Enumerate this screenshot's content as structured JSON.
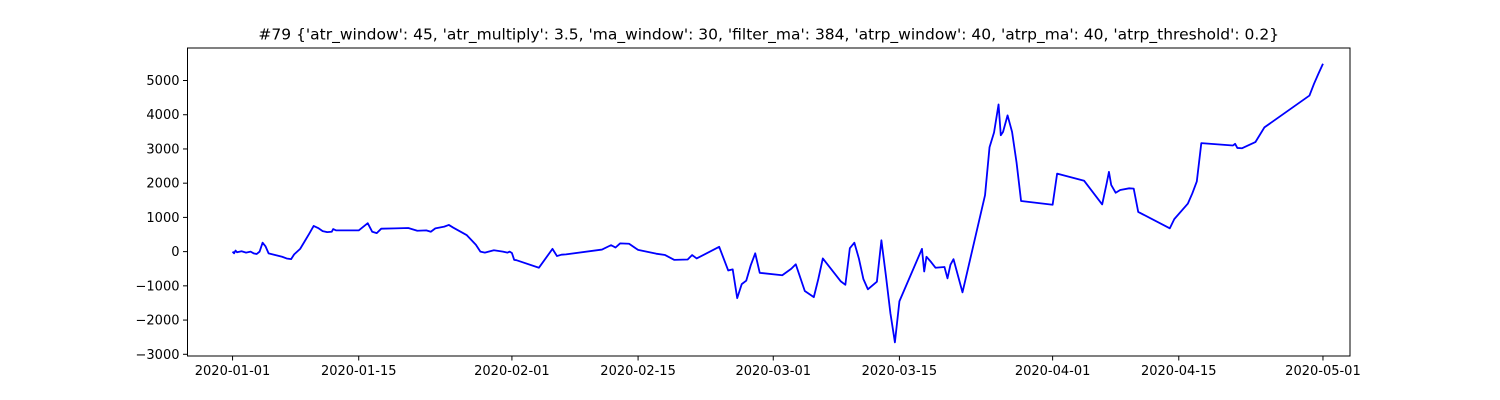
{
  "chart_data": {
    "type": "line",
    "title": "#79 {'atr_window': 45, 'atr_multiply': 3.5, 'ma_window': 30, 'filter_ma': 384, 'atrp_window': 40, 'atrp_ma': 40, 'atrp_threshold': 0.2}",
    "xlabel": "",
    "ylabel": "",
    "x_type": "date",
    "xlim": [
      "2019-12-27",
      "2020-05-04"
    ],
    "ylim": [
      -3050,
      5950
    ],
    "x_ticks": [
      "2020-01-01",
      "2020-01-15",
      "2020-02-01",
      "2020-02-15",
      "2020-03-01",
      "2020-03-15",
      "2020-04-01",
      "2020-04-15",
      "2020-05-01"
    ],
    "y_ticks": [
      -3000,
      -2000,
      -1000,
      0,
      1000,
      2000,
      3000,
      4000,
      5000
    ],
    "grid": false,
    "legend": "none",
    "series": [
      {
        "color": "#0000ff",
        "points": [
          [
            "2020-01-01T00:00",
            0
          ],
          [
            "2020-01-01T04:00",
            -50
          ],
          [
            "2020-01-01T08:00",
            30
          ],
          [
            "2020-01-01T12:00",
            -20
          ],
          [
            "2020-01-02T00:00",
            10
          ],
          [
            "2020-01-02T12:00",
            -30
          ],
          [
            "2020-01-03T00:00",
            0
          ],
          [
            "2020-01-03T08:00",
            -50
          ],
          [
            "2020-01-03T16:00",
            -70
          ],
          [
            "2020-01-04T00:00",
            0
          ],
          [
            "2020-01-04T08:00",
            260
          ],
          [
            "2020-01-04T16:00",
            150
          ],
          [
            "2020-01-05T00:00",
            -50
          ],
          [
            "2020-01-06T12:00",
            -150
          ],
          [
            "2020-01-07T00:00",
            -200
          ],
          [
            "2020-01-07T12:00",
            -220
          ],
          [
            "2020-01-07T20:00",
            -80
          ],
          [
            "2020-01-08T12:00",
            80
          ],
          [
            "2020-01-09T00:00",
            300
          ],
          [
            "2020-01-09T12:00",
            520
          ],
          [
            "2020-01-10T00:00",
            750
          ],
          [
            "2020-01-10T12:00",
            690
          ],
          [
            "2020-01-11T00:00",
            600
          ],
          [
            "2020-01-11T12:00",
            570
          ],
          [
            "2020-01-12T00:00",
            580
          ],
          [
            "2020-01-12T04:00",
            660
          ],
          [
            "2020-01-12T12:00",
            620
          ],
          [
            "2020-01-14T00:00",
            620
          ],
          [
            "2020-01-15T00:00",
            620
          ],
          [
            "2020-01-16T00:00",
            830
          ],
          [
            "2020-01-16T12:00",
            580
          ],
          [
            "2020-01-17T00:00",
            540
          ],
          [
            "2020-01-17T12:00",
            670
          ],
          [
            "2020-01-19T00:00",
            680
          ],
          [
            "2020-01-20T12:00",
            690
          ],
          [
            "2020-01-21T00:00",
            650
          ],
          [
            "2020-01-21T12:00",
            610
          ],
          [
            "2020-01-22T12:00",
            620
          ],
          [
            "2020-01-23T00:00",
            580
          ],
          [
            "2020-01-23T12:00",
            680
          ],
          [
            "2020-01-24T12:00",
            730
          ],
          [
            "2020-01-25T00:00",
            780
          ],
          [
            "2020-01-25T12:00",
            700
          ],
          [
            "2020-01-27T00:00",
            480
          ],
          [
            "2020-01-28T00:00",
            200
          ],
          [
            "2020-01-28T12:00",
            0
          ],
          [
            "2020-01-29T00:00",
            -30
          ],
          [
            "2020-01-30T00:00",
            40
          ],
          [
            "2020-01-31T00:00",
            0
          ],
          [
            "2020-01-31T12:00",
            -30
          ],
          [
            "2020-01-31T18:00",
            0
          ],
          [
            "2020-02-01T00:00",
            -40
          ],
          [
            "2020-02-01T06:00",
            -240
          ],
          [
            "2020-02-01T12:00",
            -250
          ],
          [
            "2020-02-04T00:00",
            -470
          ],
          [
            "2020-02-05T12:00",
            80
          ],
          [
            "2020-02-06T00:00",
            -130
          ],
          [
            "2020-02-06T12:00",
            -90
          ],
          [
            "2020-02-07T00:00",
            -80
          ],
          [
            "2020-02-11T00:00",
            60
          ],
          [
            "2020-02-12T00:00",
            190
          ],
          [
            "2020-02-12T12:00",
            120
          ],
          [
            "2020-02-13T00:00",
            240
          ],
          [
            "2020-02-14T00:00",
            230
          ],
          [
            "2020-02-15T00:00",
            50
          ],
          [
            "2020-02-17T00:00",
            -60
          ],
          [
            "2020-02-18T00:00",
            -100
          ],
          [
            "2020-02-19T00:00",
            -240
          ],
          [
            "2020-02-20T12:00",
            -230
          ],
          [
            "2020-02-21T00:00",
            -100
          ],
          [
            "2020-02-21T12:00",
            -200
          ],
          [
            "2020-02-24T00:00",
            140
          ],
          [
            "2020-02-25T00:00",
            -550
          ],
          [
            "2020-02-25T12:00",
            -520
          ],
          [
            "2020-02-26T00:00",
            -1360
          ],
          [
            "2020-02-26T12:00",
            -950
          ],
          [
            "2020-02-27T00:00",
            -850
          ],
          [
            "2020-02-27T12:00",
            -400
          ],
          [
            "2020-02-28T00:00",
            -50
          ],
          [
            "2020-02-28T12:00",
            -620
          ],
          [
            "2020-03-02T00:00",
            -690
          ],
          [
            "2020-03-03T00:00",
            -500
          ],
          [
            "2020-03-03T12:00",
            -370
          ],
          [
            "2020-03-04T12:00",
            -1150
          ],
          [
            "2020-03-05T12:00",
            -1330
          ],
          [
            "2020-03-06T00:00",
            -800
          ],
          [
            "2020-03-06T12:00",
            -200
          ],
          [
            "2020-03-08T12:00",
            -870
          ],
          [
            "2020-03-09T00:00",
            -970
          ],
          [
            "2020-03-09T12:00",
            100
          ],
          [
            "2020-03-10T00:00",
            260
          ],
          [
            "2020-03-10T12:00",
            -200
          ],
          [
            "2020-03-11T00:00",
            -800
          ],
          [
            "2020-03-11T12:00",
            -1100
          ],
          [
            "2020-03-12T12:00",
            -880
          ],
          [
            "2020-03-13T00:00",
            330
          ],
          [
            "2020-03-13T12:00",
            -700
          ],
          [
            "2020-03-14T00:00",
            -1800
          ],
          [
            "2020-03-14T12:00",
            -2650
          ],
          [
            "2020-03-15T00:00",
            -1450
          ],
          [
            "2020-03-17T12:00",
            80
          ],
          [
            "2020-03-17T18:00",
            -580
          ],
          [
            "2020-03-18T00:00",
            -150
          ],
          [
            "2020-03-18T12:00",
            -300
          ],
          [
            "2020-03-19T00:00",
            -470
          ],
          [
            "2020-03-20T00:00",
            -450
          ],
          [
            "2020-03-20T08:00",
            -780
          ],
          [
            "2020-03-20T16:00",
            -380
          ],
          [
            "2020-03-21T00:00",
            -220
          ],
          [
            "2020-03-22T00:00",
            -1190
          ],
          [
            "2020-03-24T12:00",
            1650
          ],
          [
            "2020-03-25T00:00",
            3050
          ],
          [
            "2020-03-25T12:00",
            3480
          ],
          [
            "2020-03-26T00:00",
            4300
          ],
          [
            "2020-03-26T06:00",
            3400
          ],
          [
            "2020-03-26T12:00",
            3500
          ],
          [
            "2020-03-27T00:00",
            3980
          ],
          [
            "2020-03-27T12:00",
            3500
          ],
          [
            "2020-03-28T00:00",
            2600
          ],
          [
            "2020-03-28T12:00",
            1480
          ],
          [
            "2020-04-01T00:00",
            1370
          ],
          [
            "2020-04-01T12:00",
            2280
          ],
          [
            "2020-04-04T12:00",
            2070
          ],
          [
            "2020-04-06T12:00",
            1380
          ],
          [
            "2020-04-07T00:00",
            2000
          ],
          [
            "2020-04-07T06:00",
            2330
          ],
          [
            "2020-04-07T12:00",
            1950
          ],
          [
            "2020-04-08T00:00",
            1720
          ],
          [
            "2020-04-08T12:00",
            1800
          ],
          [
            "2020-04-09T12:00",
            1850
          ],
          [
            "2020-04-10T00:00",
            1840
          ],
          [
            "2020-04-10T12:00",
            1160
          ],
          [
            "2020-04-14T00:00",
            680
          ],
          [
            "2020-04-14T12:00",
            950
          ],
          [
            "2020-04-16T00:00",
            1400
          ],
          [
            "2020-04-16T12:00",
            1700
          ],
          [
            "2020-04-17T00:00",
            2050
          ],
          [
            "2020-04-17T12:00",
            3170
          ],
          [
            "2020-04-21T00:00",
            3100
          ],
          [
            "2020-04-21T06:00",
            3150
          ],
          [
            "2020-04-21T12:00",
            3030
          ],
          [
            "2020-04-22T00:00",
            3020
          ],
          [
            "2020-04-23T12:00",
            3200
          ],
          [
            "2020-04-24T12:00",
            3630
          ],
          [
            "2020-04-29T12:00",
            4560
          ],
          [
            "2020-04-30T00:00",
            4900
          ],
          [
            "2020-04-30T12:00",
            5200
          ],
          [
            "2020-05-01T00:00",
            5490
          ]
        ]
      }
    ]
  }
}
